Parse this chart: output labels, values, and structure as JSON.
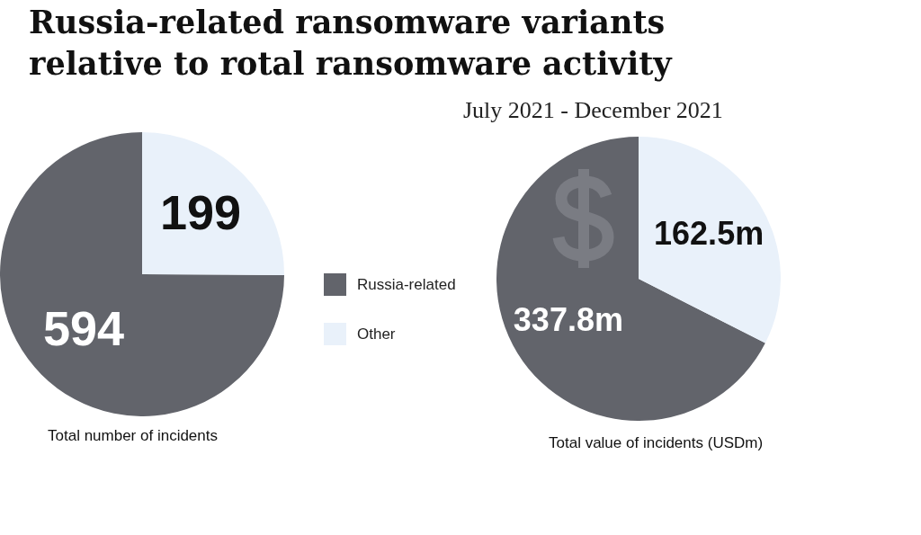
{
  "chart_data": [
    {
      "type": "pie",
      "title": "Russia-related ransomware variants relative to rotal ransomware activity",
      "categories": [
        "Russia-related",
        "Other"
      ],
      "values": [
        594,
        199
      ],
      "colors": [
        "#62646b",
        "#e9f1fa"
      ],
      "data_labels": true,
      "legend": "right",
      "annotations": [
        "Total number of incidents"
      ]
    },
    {
      "type": "pie",
      "subtitle": "July 2021 - December 2021",
      "categories": [
        null,
        null
      ],
      "values": [
        337.8,
        162.5
      ],
      "colors": [
        "#62646b",
        "#e9f1fa"
      ],
      "value_labels": [
        "337.8m",
        "162.5m"
      ],
      "annotations": [
        "Total value of incidents (USDm)"
      ]
    }
  ]
}
